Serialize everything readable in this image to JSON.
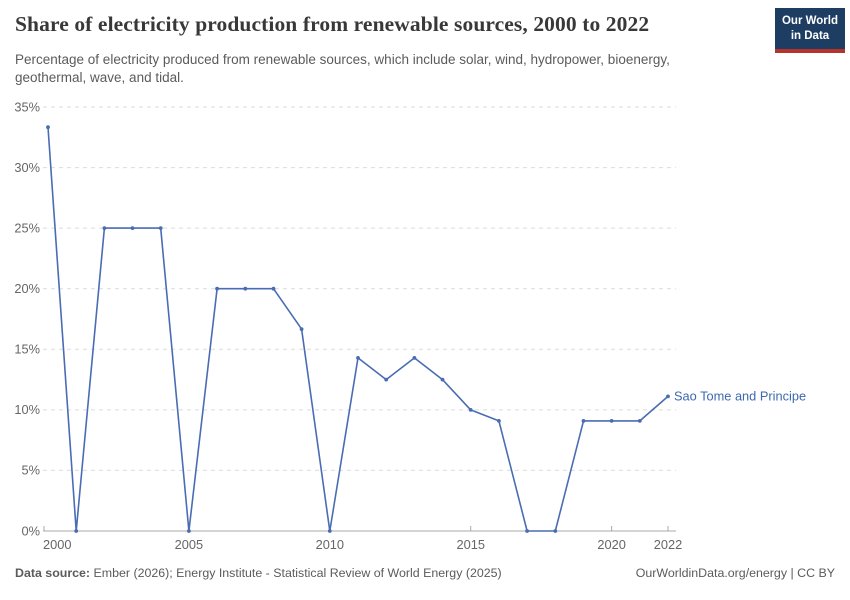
{
  "header": {
    "title": "Share of electricity production from renewable sources, 2000 to 2022",
    "subtitle": "Percentage of electricity produced from renewable sources, which include solar, wind, hydropower, bioenergy, geothermal, wave, and tidal.",
    "logo_line1": "Our World",
    "logo_line2": "in Data"
  },
  "footer": {
    "datasource_label": "Data source:",
    "datasource_text": " Ember (2026); Energy Institute - Statistical Review of World Energy (2025)",
    "license_text": "OurWorldinData.org/energy | CC BY"
  },
  "colors": {
    "line": "#4a6cb3",
    "entity_label": "#3d68b0",
    "grid": "#dbdbdb",
    "axis": "#a8a8a8",
    "tick_text": "#666666",
    "logo_bg": "#1d3d63",
    "logo_red": "#b5332a",
    "title_text": "#383838"
  },
  "chart_data": {
    "type": "line",
    "title": "Share of electricity production from renewable sources, 2000 to 2022",
    "xlabel": "",
    "ylabel": "",
    "xlim": [
      2000,
      2022
    ],
    "ylim": [
      0,
      35
    ],
    "grid": true,
    "legend_position": "end-of-line-label",
    "yticks": [
      0,
      5,
      10,
      15,
      20,
      25,
      30,
      35
    ],
    "ytick_suffix": "%",
    "xticks": [
      2000,
      2005,
      2010,
      2015,
      2020,
      2022
    ],
    "x": [
      2000,
      2001,
      2002,
      2003,
      2004,
      2005,
      2006,
      2007,
      2008,
      2009,
      2010,
      2011,
      2012,
      2013,
      2014,
      2015,
      2016,
      2017,
      2018,
      2019,
      2020,
      2021,
      2022
    ],
    "series": [
      {
        "name": "Sao Tome and Principe",
        "values": [
          33.33,
          0,
          25,
          25,
          25,
          0,
          20,
          20,
          20,
          16.67,
          0,
          14.29,
          12.5,
          14.29,
          12.5,
          10,
          9.09,
          0,
          0,
          9.09,
          9.09,
          9.09,
          11.11
        ]
      }
    ]
  }
}
